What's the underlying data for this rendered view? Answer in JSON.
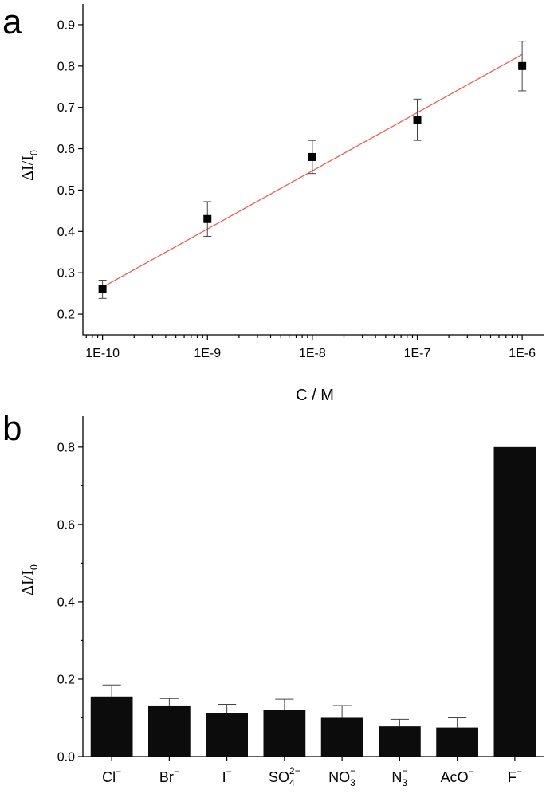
{
  "panels": {
    "a": {
      "letter": "a"
    },
    "b": {
      "letter": "b"
    }
  },
  "chart_data": [
    {
      "type": "scatter",
      "panel": "a",
      "xlabel": "C / M",
      "ylabel": {
        "main": "ΔI/I",
        "sub": "0"
      },
      "xscale": "log",
      "xlim": [
        6.5e-11,
        1.6e-06
      ],
      "ylim": [
        0.15,
        0.95
      ],
      "xticks": [
        1e-10,
        1e-09,
        1e-08,
        1e-07,
        1e-06
      ],
      "xtick_labels": [
        "1E-10",
        "1E-9",
        "1E-8",
        "1E-7",
        "1E-6"
      ],
      "yticks": [
        0.2,
        0.3,
        0.4,
        0.5,
        0.6,
        0.7,
        0.8,
        0.9
      ],
      "ytick_labels": [
        "0.2",
        "0.3",
        "0.4",
        "0.5",
        "0.6",
        "0.7",
        "0.8",
        "0.9"
      ],
      "grid": false,
      "points": [
        {
          "x": 1e-10,
          "y": 0.26,
          "err": 0.022
        },
        {
          "x": 1e-09,
          "y": 0.43,
          "err": 0.042
        },
        {
          "x": 1e-08,
          "y": 0.58,
          "err": 0.04
        },
        {
          "x": 1e-07,
          "y": 0.67,
          "err": 0.05
        },
        {
          "x": 1e-06,
          "y": 0.8,
          "err": 0.06
        }
      ],
      "fit_line": {
        "x": [
          1e-10,
          1e-06
        ],
        "y": [
          0.265,
          0.828
        ],
        "color": "#e8605a"
      },
      "marker_color": "#000000"
    },
    {
      "type": "bar",
      "panel": "b",
      "xlabel": "",
      "ylabel": {
        "main": "ΔI/I",
        "sub": "0"
      },
      "ylim": [
        0,
        0.88
      ],
      "yticks": [
        0.0,
        0.2,
        0.4,
        0.6,
        0.8
      ],
      "ytick_labels": [
        "0.0",
        "0.2",
        "0.4",
        "0.6",
        "0.8"
      ],
      "grid": false,
      "categories": [
        {
          "base": "Cl",
          "sub": "",
          "sup": "−"
        },
        {
          "base": "Br",
          "sub": "",
          "sup": "−"
        },
        {
          "base": "I",
          "sub": "",
          "sup": "−"
        },
        {
          "base": "SO",
          "sub": "4",
          "sup": "2−"
        },
        {
          "base": "NO",
          "sub": "3",
          "sup": "−"
        },
        {
          "base": "N",
          "sub": "3",
          "sup": "−"
        },
        {
          "base": "AcO",
          "sub": "",
          "sup": "−"
        },
        {
          "base": "F",
          "sub": "",
          "sup": "−"
        }
      ],
      "values": [
        0.155,
        0.132,
        0.113,
        0.12,
        0.1,
        0.078,
        0.075,
        0.8
      ],
      "errors": [
        0.03,
        0.018,
        0.022,
        0.028,
        0.032,
        0.018,
        0.025,
        0.0
      ],
      "bar_color": "#0c0c0c"
    }
  ]
}
